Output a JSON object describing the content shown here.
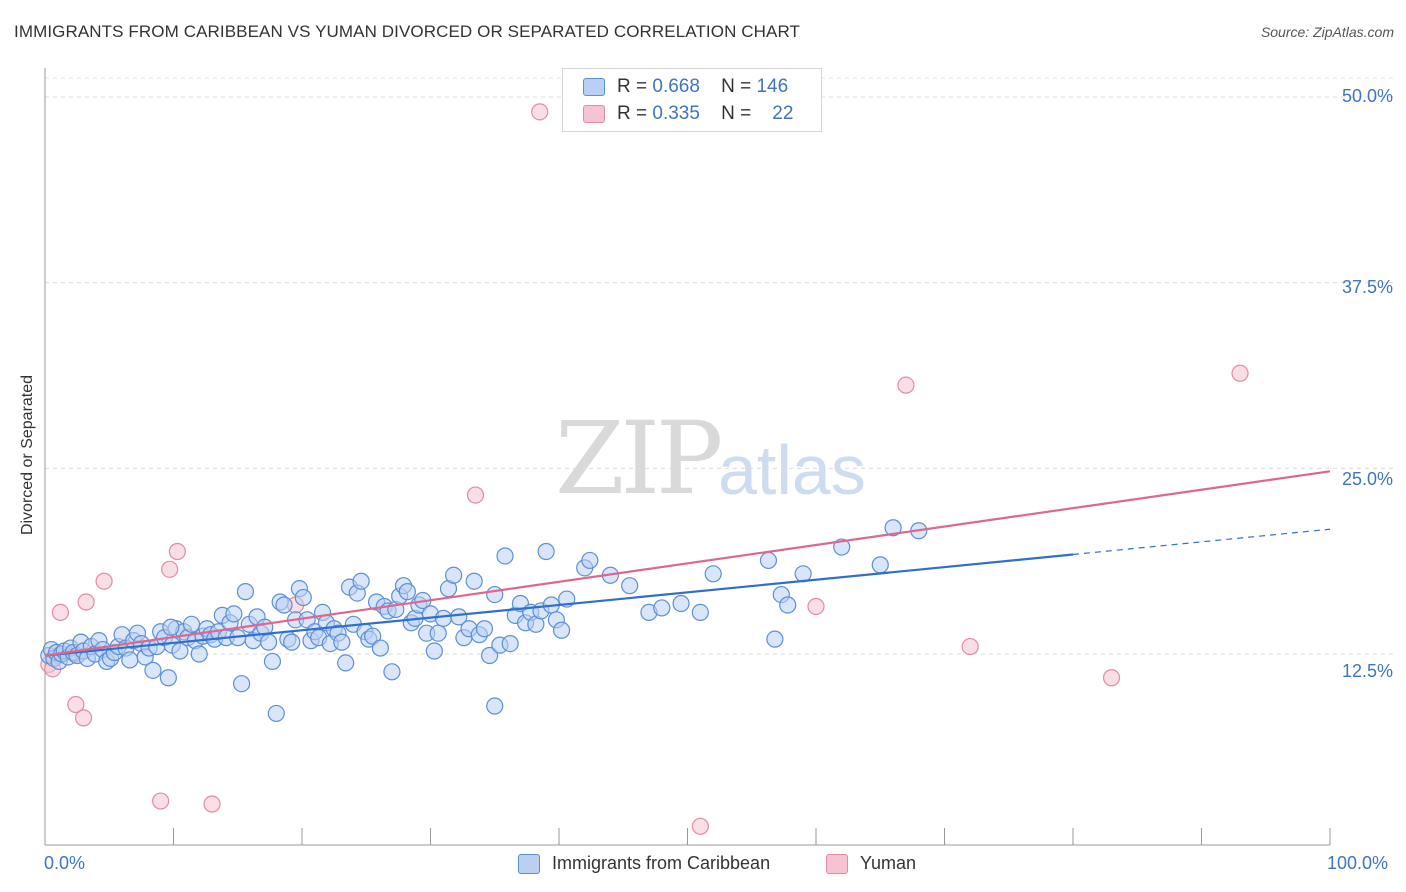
{
  "header": {
    "title": "IMMIGRANTS FROM CARIBBEAN VS YUMAN DIVORCED OR SEPARATED CORRELATION CHART",
    "source": "Source: ZipAtlas.com"
  },
  "watermark": {
    "zip": "ZIP",
    "atlas": "atlas"
  },
  "legend": {
    "rows": [
      {
        "r_label": "R =",
        "r_value": "0.668",
        "n_label": "N =",
        "n_value": "146"
      },
      {
        "r_label": "R =",
        "r_value": "0.335",
        "n_label": "N =",
        "n_value": "22"
      }
    ]
  },
  "bottom_legend": {
    "series1": "Immigrants from Caribbean",
    "series2": "Yuman"
  },
  "axis": {
    "y_title": "Divorced or Separated",
    "y_ticks": [
      "50.0%",
      "37.5%",
      "25.0%",
      "12.5%"
    ],
    "x_min_label": "0.0%",
    "x_max_label": "100.0%"
  },
  "colors": {
    "blue": "#5b8fd6",
    "blue_fill": "#b9d0f2",
    "blue_line": "#2f6fcf",
    "pink": "#e48aa6",
    "pink_fill": "#f6c3d2",
    "pink_line": "#e0668e",
    "tick_text": "#3f74c4"
  },
  "chart_data": {
    "type": "scatter",
    "xlim": [
      0,
      100
    ],
    "ylim": [
      0,
      52
    ],
    "series": [
      {
        "name": "Immigrants from Caribbean",
        "color": "#5b8fd6",
        "trend": {
          "x": [
            0,
            80
          ],
          "y": [
            12.4,
            19.2
          ],
          "dashed_extension_to": [
            100,
            20.9
          ]
        },
        "points": [
          [
            0.3,
            12.4
          ],
          [
            0.5,
            12.8
          ],
          [
            0.7,
            12.2
          ],
          [
            0.9,
            12.6
          ],
          [
            1.1,
            12.0
          ],
          [
            1.3,
            12.5
          ],
          [
            1.5,
            12.7
          ],
          [
            1.8,
            12.3
          ],
          [
            2.0,
            12.9
          ],
          [
            2.2,
            12.6
          ],
          [
            2.5,
            12.4
          ],
          [
            2.8,
            13.3
          ],
          [
            3.0,
            12.7
          ],
          [
            3.3,
            12.2
          ],
          [
            3.6,
            13.0
          ],
          [
            3.9,
            12.5
          ],
          [
            4.2,
            13.4
          ],
          [
            4.5,
            12.8
          ],
          [
            4.8,
            12.0
          ],
          [
            5.1,
            12.2
          ],
          [
            5.4,
            12.6
          ],
          [
            5.7,
            13.0
          ],
          [
            6.0,
            13.8
          ],
          [
            6.3,
            12.9
          ],
          [
            6.6,
            12.1
          ],
          [
            6.9,
            13.4
          ],
          [
            7.2,
            13.9
          ],
          [
            7.5,
            13.2
          ],
          [
            7.8,
            12.3
          ],
          [
            8.1,
            12.9
          ],
          [
            8.4,
            11.4
          ],
          [
            8.7,
            13.0
          ],
          [
            9.0,
            14.0
          ],
          [
            9.3,
            13.6
          ],
          [
            9.6,
            10.9
          ],
          [
            9.9,
            13.1
          ],
          [
            10.2,
            14.2
          ],
          [
            10.5,
            12.7
          ],
          [
            10.8,
            14.0
          ],
          [
            11.1,
            13.6
          ],
          [
            11.4,
            14.5
          ],
          [
            11.7,
            13.4
          ],
          [
            12.0,
            12.5
          ],
          [
            12.3,
            13.7
          ],
          [
            12.6,
            14.2
          ],
          [
            12.9,
            13.8
          ],
          [
            13.2,
            13.5
          ],
          [
            13.5,
            14.0
          ],
          [
            13.8,
            15.1
          ],
          [
            14.1,
            13.6
          ],
          [
            14.4,
            14.6
          ],
          [
            14.7,
            15.2
          ],
          [
            15.0,
            13.6
          ],
          [
            15.3,
            10.5
          ],
          [
            15.6,
            16.7
          ],
          [
            15.9,
            14.5
          ],
          [
            16.2,
            13.4
          ],
          [
            16.5,
            15.0
          ],
          [
            16.8,
            13.9
          ],
          [
            17.1,
            14.3
          ],
          [
            17.4,
            13.3
          ],
          [
            17.7,
            12.0
          ],
          [
            18.0,
            8.5
          ],
          [
            18.3,
            16.0
          ],
          [
            18.6,
            15.8
          ],
          [
            18.9,
            13.5
          ],
          [
            19.2,
            13.3
          ],
          [
            19.5,
            14.8
          ],
          [
            19.8,
            16.9
          ],
          [
            20.1,
            16.3
          ],
          [
            20.4,
            14.8
          ],
          [
            20.7,
            13.4
          ],
          [
            21.0,
            14.0
          ],
          [
            21.3,
            13.6
          ],
          [
            21.6,
            15.3
          ],
          [
            21.9,
            14.6
          ],
          [
            22.2,
            13.2
          ],
          [
            22.5,
            14.2
          ],
          [
            22.8,
            13.9
          ],
          [
            23.1,
            13.3
          ],
          [
            23.4,
            11.9
          ],
          [
            23.7,
            17.0
          ],
          [
            24.0,
            14.5
          ],
          [
            24.3,
            16.6
          ],
          [
            24.6,
            17.4
          ],
          [
            24.9,
            14.0
          ],
          [
            25.2,
            13.5
          ],
          [
            25.5,
            13.7
          ],
          [
            25.8,
            16.0
          ],
          [
            26.1,
            12.9
          ],
          [
            26.4,
            15.7
          ],
          [
            26.7,
            15.4
          ],
          [
            27.0,
            11.3
          ],
          [
            27.3,
            15.5
          ],
          [
            27.6,
            16.4
          ],
          [
            27.9,
            17.1
          ],
          [
            28.2,
            16.7
          ],
          [
            28.5,
            14.6
          ],
          [
            28.8,
            14.9
          ],
          [
            29.1,
            15.8
          ],
          [
            29.4,
            16.1
          ],
          [
            29.7,
            13.9
          ],
          [
            30.0,
            15.2
          ],
          [
            30.3,
            12.7
          ],
          [
            30.6,
            13.9
          ],
          [
            31.0,
            14.9
          ],
          [
            31.4,
            16.9
          ],
          [
            31.8,
            17.8
          ],
          [
            32.2,
            15.0
          ],
          [
            32.6,
            13.6
          ],
          [
            33.0,
            14.2
          ],
          [
            33.4,
            17.4
          ],
          [
            33.8,
            13.8
          ],
          [
            34.2,
            14.2
          ],
          [
            34.6,
            12.4
          ],
          [
            35.0,
            16.5
          ],
          [
            35.4,
            13.1
          ],
          [
            35.8,
            19.1
          ],
          [
            36.2,
            13.2
          ],
          [
            36.6,
            15.1
          ],
          [
            37.0,
            15.9
          ],
          [
            37.4,
            14.6
          ],
          [
            37.8,
            15.3
          ],
          [
            38.2,
            14.5
          ],
          [
            38.6,
            15.4
          ],
          [
            39.0,
            19.4
          ],
          [
            39.4,
            15.8
          ],
          [
            39.8,
            14.8
          ],
          [
            40.2,
            14.1
          ],
          [
            40.6,
            16.2
          ],
          [
            42.0,
            18.3
          ],
          [
            42.4,
            18.8
          ],
          [
            44.0,
            17.8
          ],
          [
            45.5,
            17.1
          ],
          [
            47.0,
            15.3
          ],
          [
            48.0,
            15.6
          ],
          [
            49.5,
            15.9
          ],
          [
            51.0,
            15.3
          ],
          [
            52.0,
            17.9
          ],
          [
            56.3,
            18.8
          ],
          [
            56.8,
            13.5
          ],
          [
            57.3,
            16.5
          ],
          [
            57.8,
            15.8
          ],
          [
            59.0,
            17.9
          ],
          [
            62.0,
            19.7
          ],
          [
            65.0,
            18.5
          ],
          [
            66.0,
            21.0
          ],
          [
            68.0,
            20.8
          ],
          [
            35.0,
            9.0
          ],
          [
            9.8,
            14.3
          ]
        ]
      },
      {
        "name": "Yuman",
        "color": "#e48aa6",
        "trend": {
          "x": [
            0,
            100
          ],
          "y": [
            12.4,
            24.8
          ]
        },
        "points": [
          [
            0.3,
            11.8
          ],
          [
            0.6,
            11.5
          ],
          [
            1.0,
            12.4
          ],
          [
            1.2,
            15.3
          ],
          [
            2.3,
            12.5
          ],
          [
            2.4,
            9.1
          ],
          [
            3.0,
            8.2
          ],
          [
            3.2,
            16.0
          ],
          [
            4.6,
            17.4
          ],
          [
            9.0,
            2.6
          ],
          [
            9.7,
            18.2
          ],
          [
            10.3,
            19.4
          ],
          [
            13.0,
            2.4
          ],
          [
            19.5,
            15.8
          ],
          [
            33.5,
            23.2
          ],
          [
            38.5,
            49.0
          ],
          [
            51.0,
            0.9
          ],
          [
            60.0,
            15.7
          ],
          [
            67.0,
            30.6
          ],
          [
            72.0,
            13.0
          ],
          [
            83.0,
            10.9
          ],
          [
            93.0,
            31.4
          ]
        ]
      }
    ]
  }
}
